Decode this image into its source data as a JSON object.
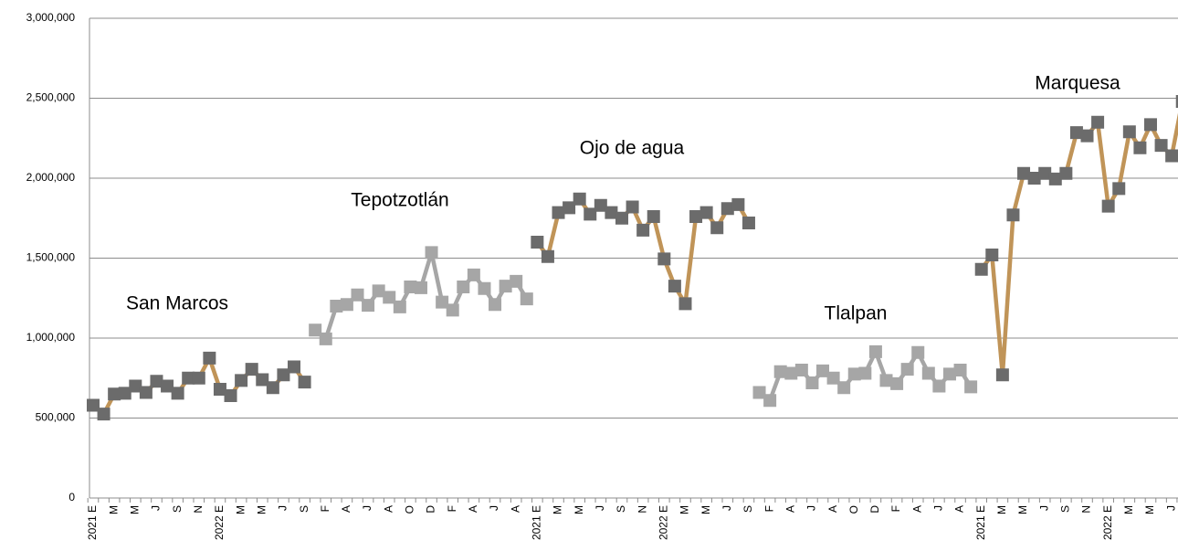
{
  "chart_data": {
    "type": "line",
    "categories": [
      "2021 E",
      null,
      "M",
      null,
      "M",
      null,
      "J",
      null,
      "S",
      null,
      "N",
      null,
      "2022 E",
      null,
      "M",
      null,
      "M",
      null,
      "J",
      null,
      "S",
      null,
      "F",
      null,
      "A",
      null,
      "J",
      null,
      "A",
      null,
      "O",
      null,
      "D",
      null,
      "F",
      null,
      "A",
      null,
      "J",
      null,
      "A",
      null,
      "2021 E",
      null,
      "M",
      null,
      "M",
      null,
      "J",
      null,
      "S",
      null,
      "N",
      null,
      "2022 E",
      null,
      "M",
      null,
      "M",
      null,
      "J",
      null,
      "S",
      null,
      "F",
      null,
      "A",
      null,
      "J",
      null,
      "A",
      null,
      "O",
      null,
      "D",
      null,
      "F",
      null,
      "A",
      null,
      "J",
      null,
      "A",
      null,
      "2021 E",
      null,
      "M",
      null,
      "M",
      null,
      "J",
      null,
      "S",
      null,
      "N",
      null,
      "2022 E",
      null,
      "M",
      null,
      "M",
      null,
      "J",
      null
    ],
    "series": [
      {
        "name": "San Marcos",
        "color": "#c09458",
        "marker_color": "#6b6b6b",
        "values": [
          580000,
          525000,
          650000,
          655000,
          700000,
          660000,
          730000,
          700000,
          655000,
          750000,
          750000,
          875000,
          680000,
          640000,
          735000,
          805000,
          740000,
          690000,
          770000,
          820000,
          725000,
          null,
          null,
          null,
          null,
          null,
          null,
          null,
          null,
          null,
          null,
          null,
          null,
          null,
          null,
          null,
          null,
          null,
          null,
          null,
          null,
          null,
          null,
          null,
          null,
          null,
          null,
          null,
          null,
          null,
          null,
          null,
          null,
          null,
          null,
          null,
          null,
          null,
          null,
          null,
          null,
          null,
          null,
          null,
          null,
          null,
          null,
          null,
          null,
          null,
          null,
          null,
          null,
          null,
          null,
          null,
          null,
          null,
          null,
          null,
          null,
          null,
          null,
          null,
          null,
          null,
          null,
          null,
          null,
          null,
          null,
          null,
          null,
          null,
          null,
          null,
          null,
          null,
          null,
          null,
          null,
          null,
          null,
          null
        ]
      },
      {
        "name": "Tepotzotlán",
        "color": "#a6a6a6",
        "marker_color": "#a6a6a6",
        "values": [
          null,
          null,
          null,
          null,
          null,
          null,
          null,
          null,
          null,
          null,
          null,
          null,
          null,
          null,
          null,
          null,
          null,
          null,
          null,
          null,
          null,
          1050000,
          995000,
          1200000,
          1210000,
          1270000,
          1205000,
          1295000,
          1255000,
          1195000,
          1320000,
          1315000,
          1535000,
          1225000,
          1175000,
          1320000,
          1395000,
          1310000,
          1210000,
          1325000,
          1355000,
          1245000,
          null,
          null,
          null,
          null,
          null,
          null,
          null,
          null,
          null,
          null,
          null,
          null,
          null,
          null,
          null,
          null,
          null,
          null,
          null,
          null,
          null,
          null,
          null,
          null,
          null,
          null,
          null,
          null,
          null,
          null,
          null,
          null,
          null,
          null,
          null,
          null,
          null,
          null,
          null,
          null,
          null,
          null,
          null,
          null,
          null,
          null,
          null,
          null,
          null,
          null,
          null,
          null,
          null,
          null,
          null,
          null,
          null,
          null,
          null,
          null,
          null,
          null
        ]
      },
      {
        "name": "Ojo de agua",
        "color": "#c09458",
        "marker_color": "#6b6b6b",
        "values": [
          null,
          null,
          null,
          null,
          null,
          null,
          null,
          null,
          null,
          null,
          null,
          null,
          null,
          null,
          null,
          null,
          null,
          null,
          null,
          null,
          null,
          null,
          null,
          null,
          null,
          null,
          null,
          null,
          null,
          null,
          null,
          null,
          null,
          null,
          null,
          null,
          null,
          null,
          null,
          null,
          null,
          null,
          1600000,
          1510000,
          1785000,
          1815000,
          1870000,
          1775000,
          1830000,
          1785000,
          1750000,
          1820000,
          1675000,
          1760000,
          1495000,
          1325000,
          1215000,
          1760000,
          1785000,
          1690000,
          1810000,
          1835000,
          1720000,
          null,
          null,
          null,
          null,
          null,
          null,
          null,
          null,
          null,
          null,
          null,
          null,
          null,
          null,
          null,
          null,
          null,
          null,
          null,
          null,
          null,
          null,
          null,
          null,
          null,
          null,
          null,
          null,
          null,
          null,
          null,
          null,
          null,
          null,
          null,
          null,
          null,
          null,
          null,
          null,
          null
        ]
      },
      {
        "name": "Tlalpan",
        "color": "#a6a6a6",
        "marker_color": "#a6a6a6",
        "values": [
          null,
          null,
          null,
          null,
          null,
          null,
          null,
          null,
          null,
          null,
          null,
          null,
          null,
          null,
          null,
          null,
          null,
          null,
          null,
          null,
          null,
          null,
          null,
          null,
          null,
          null,
          null,
          null,
          null,
          null,
          null,
          null,
          null,
          null,
          null,
          null,
          null,
          null,
          null,
          null,
          null,
          null,
          null,
          null,
          null,
          null,
          null,
          null,
          null,
          null,
          null,
          null,
          null,
          null,
          null,
          null,
          null,
          null,
          null,
          null,
          null,
          null,
          null,
          660000,
          610000,
          790000,
          780000,
          800000,
          720000,
          795000,
          750000,
          690000,
          775000,
          780000,
          915000,
          735000,
          715000,
          805000,
          910000,
          780000,
          700000,
          775000,
          800000,
          695000,
          null,
          null,
          null,
          null,
          null,
          null,
          null,
          null,
          null,
          null,
          null,
          null,
          null,
          null,
          null,
          null,
          null,
          null,
          null,
          null
        ]
      },
      {
        "name": "Marquesa",
        "color": "#c09458",
        "marker_color": "#6b6b6b",
        "values": [
          null,
          null,
          null,
          null,
          null,
          null,
          null,
          null,
          null,
          null,
          null,
          null,
          null,
          null,
          null,
          null,
          null,
          null,
          null,
          null,
          null,
          null,
          null,
          null,
          null,
          null,
          null,
          null,
          null,
          null,
          null,
          null,
          null,
          null,
          null,
          null,
          null,
          null,
          null,
          null,
          null,
          null,
          null,
          null,
          null,
          null,
          null,
          null,
          null,
          null,
          null,
          null,
          null,
          null,
          null,
          null,
          null,
          null,
          null,
          null,
          null,
          null,
          null,
          null,
          null,
          null,
          null,
          null,
          null,
          null,
          null,
          null,
          null,
          null,
          null,
          null,
          null,
          null,
          null,
          null,
          null,
          null,
          null,
          null,
          1430000,
          1520000,
          770000,
          1770000,
          2030000,
          2000000,
          2030000,
          1995000,
          2030000,
          2285000,
          2265000,
          2350000,
          1825000,
          1935000,
          2290000,
          2190000,
          2335000,
          2205000,
          2140000,
          2480000
        ]
      }
    ],
    "ylim": [
      0,
      3000000
    ],
    "yticks": [
      0,
      {
        "value": 500000,
        "label": "500,000"
      },
      {
        "value": 1000000,
        "label": "1,000,000"
      },
      {
        "value": 1500000,
        "label": "1,500,000"
      },
      {
        "value": 2000000,
        "label": "2,000,000"
      },
      {
        "value": 2500000,
        "label": "2,500,000"
      },
      {
        "value": 3000000,
        "label": "3,000,000"
      }
    ],
    "grid": true
  }
}
